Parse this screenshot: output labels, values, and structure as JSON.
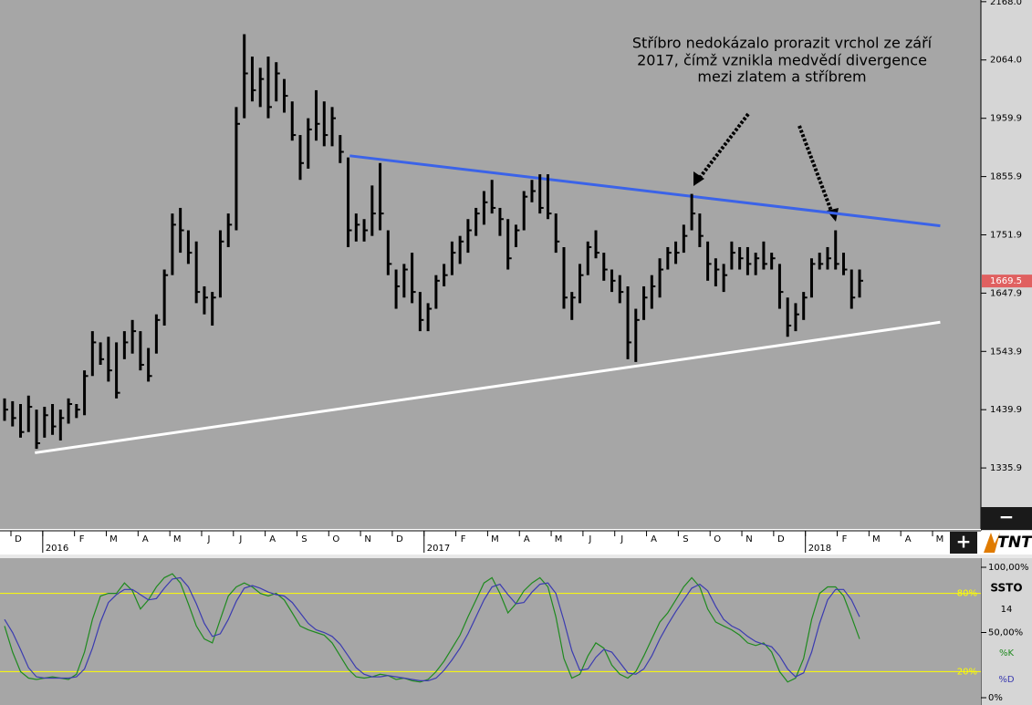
{
  "chart_data": [
    {
      "type": "ohlc",
      "annotation": [
        "Stříbro nedokázalo prorazit vrchol ze září",
        "2017, čímž vznikla medvědí divergence",
        "mezi zlatem a stříbrem"
      ],
      "color": "#000000",
      "high": [
        1460,
        1455,
        1450,
        1465,
        1440,
        1445,
        1450,
        1440,
        1460,
        1450,
        1510,
        1580,
        1560,
        1570,
        1560,
        1580,
        1600,
        1580,
        1550,
        1610,
        1690,
        1790,
        1800,
        1760,
        1740,
        1660,
        1650,
        1760,
        1790,
        1980,
        2110,
        2070,
        2050,
        2070,
        2060,
        2030,
        1990,
        1930,
        1960,
        2010,
        1990,
        1980,
        1930,
        1890,
        1790,
        1780,
        1840,
        1880,
        1760,
        1690,
        1700,
        1720,
        1650,
        1630,
        1680,
        1700,
        1740,
        1750,
        1780,
        1800,
        1830,
        1850,
        1800,
        1780,
        1770,
        1830,
        1850,
        1860,
        1860,
        1790,
        1730,
        1650,
        1700,
        1740,
        1760,
        1720,
        1690,
        1680,
        1660,
        1620,
        1660,
        1680,
        1710,
        1730,
        1740,
        1770,
        1825,
        1790,
        1740,
        1710,
        1700,
        1740,
        1730,
        1730,
        1720,
        1740,
        1720,
        1700,
        1640,
        1630,
        1650,
        1710,
        1720,
        1730,
        1760,
        1720,
        1690,
        1690
      ],
      "low": [
        1420,
        1410,
        1390,
        1400,
        1370,
        1390,
        1395,
        1385,
        1415,
        1425,
        1430,
        1500,
        1520,
        1490,
        1460,
        1530,
        1540,
        1510,
        1490,
        1540,
        1590,
        1680,
        1720,
        1700,
        1630,
        1610,
        1590,
        1640,
        1730,
        1760,
        1960,
        1990,
        1980,
        1960,
        1990,
        1970,
        1920,
        1850,
        1870,
        1920,
        1910,
        1910,
        1880,
        1730,
        1740,
        1740,
        1750,
        1760,
        1680,
        1620,
        1640,
        1630,
        1580,
        1580,
        1620,
        1660,
        1680,
        1700,
        1720,
        1750,
        1770,
        1790,
        1750,
        1690,
        1730,
        1760,
        1810,
        1790,
        1780,
        1720,
        1620,
        1600,
        1630,
        1680,
        1710,
        1670,
        1650,
        1630,
        1530,
        1525,
        1600,
        1620,
        1640,
        1690,
        1700,
        1720,
        1760,
        1730,
        1670,
        1660,
        1650,
        1690,
        1690,
        1680,
        1680,
        1690,
        1690,
        1620,
        1570,
        1580,
        1600,
        1640,
        1690,
        1690,
        1690,
        1680,
        1620,
        1640
      ],
      "close": [
        1440,
        1425,
        1400,
        1445,
        1380,
        1430,
        1410,
        1425,
        1450,
        1440,
        1500,
        1560,
        1530,
        1510,
        1470,
        1560,
        1580,
        1520,
        1500,
        1600,
        1680,
        1770,
        1760,
        1720,
        1650,
        1640,
        1640,
        1740,
        1770,
        1950,
        2040,
        2010,
        2030,
        1980,
        2040,
        2000,
        1930,
        1880,
        1940,
        1950,
        1930,
        1960,
        1900,
        1760,
        1770,
        1760,
        1790,
        1790,
        1700,
        1660,
        1690,
        1650,
        1600,
        1620,
        1670,
        1680,
        1720,
        1740,
        1760,
        1790,
        1810,
        1800,
        1780,
        1710,
        1760,
        1820,
        1830,
        1800,
        1790,
        1740,
        1640,
        1640,
        1680,
        1730,
        1720,
        1690,
        1670,
        1650,
        1560,
        1600,
        1640,
        1660,
        1690,
        1720,
        1720,
        1750,
        1790,
        1750,
        1700,
        1690,
        1680,
        1720,
        1710,
        1700,
        1710,
        1700,
        1710,
        1650,
        1590,
        1610,
        1640,
        1700,
        1700,
        1710,
        1700,
        1690,
        1640,
        1670
      ],
      "ylim": [
        1227,
        2171
      ],
      "yticks": [
        {
          "value": 2168,
          "label": "2168.0"
        },
        {
          "value": 2064,
          "label": "2064.0"
        },
        1959.9,
        1855.9,
        1751.9,
        1647.9,
        1543.9,
        1439.9,
        1335.9
      ],
      "last_price": 1669.5,
      "trendlines": [
        {
          "color": "#3b63e8",
          "x": [
            43.2,
            117.1
          ],
          "values": [
            1893,
            1768
          ]
        },
        {
          "color": "#ffffff",
          "x": [
            3.8,
            117.1
          ],
          "values": [
            1363,
            1596
          ]
        }
      ],
      "x_axis": {
        "months": [
          "D",
          null,
          "F",
          "M",
          "A",
          "M",
          "J",
          "J",
          "A",
          "S",
          "O",
          "N",
          "D",
          null,
          "F",
          "M",
          "A",
          "M",
          "J",
          "J",
          "A",
          "S",
          "O",
          "N",
          "D",
          null,
          "F",
          "M",
          "A",
          "M"
        ],
        "years": [
          "2016",
          "2017",
          "2018"
        ]
      }
    },
    {
      "type": "line",
      "title": "SSTO",
      "period": 14,
      "series": [
        {
          "name": "%K",
          "color": "#1f8a1f",
          "values": [
            55,
            35,
            20,
            15,
            14,
            15,
            16,
            15,
            14,
            18,
            35,
            60,
            78,
            80,
            80,
            88,
            82,
            68,
            75,
            85,
            92,
            95,
            88,
            72,
            55,
            45,
            42,
            60,
            78,
            85,
            88,
            85,
            80,
            78,
            80,
            75,
            65,
            55,
            52,
            50,
            48,
            42,
            32,
            22,
            16,
            15,
            16,
            18,
            17,
            14,
            15,
            13,
            12,
            14,
            20,
            28,
            38,
            48,
            62,
            75,
            88,
            92,
            80,
            65,
            72,
            82,
            88,
            92,
            85,
            62,
            30,
            15,
            18,
            32,
            42,
            38,
            25,
            18,
            15,
            20,
            32,
            45,
            58,
            65,
            75,
            85,
            92,
            85,
            68,
            58,
            55,
            52,
            48,
            42,
            40,
            42,
            35,
            20,
            12,
            15,
            30,
            60,
            80,
            85,
            85,
            78,
            62,
            45
          ]
        },
        {
          "name": "%D",
          "color": "#3b3bb0",
          "values": [
            60,
            50,
            37,
            23,
            16,
            15,
            15,
            15,
            15,
            16,
            22,
            38,
            58,
            73,
            79,
            83,
            83,
            79,
            75,
            76,
            84,
            91,
            92,
            85,
            72,
            57,
            47,
            49,
            60,
            74,
            84,
            86,
            84,
            81,
            79,
            78,
            73,
            65,
            57,
            52,
            50,
            47,
            41,
            32,
            23,
            18,
            16,
            16,
            17,
            16,
            15,
            14,
            13,
            13,
            15,
            21,
            29,
            38,
            49,
            62,
            75,
            85,
            87,
            79,
            72,
            73,
            81,
            87,
            88,
            80,
            59,
            36,
            21,
            22,
            31,
            37,
            35,
            27,
            19,
            18,
            22,
            32,
            45,
            56,
            66,
            75,
            84,
            87,
            82,
            70,
            60,
            55,
            52,
            47,
            43,
            41,
            39,
            32,
            22,
            16,
            19,
            35,
            57,
            75,
            83,
            83,
            75,
            62
          ]
        }
      ],
      "ylim": [
        0,
        100
      ],
      "yticks": [
        {
          "value": 100,
          "label": "100,00%"
        },
        {
          "value": 50,
          "label": "50,00%"
        },
        {
          "value": 0,
          "label": "0%"
        }
      ],
      "levels": [
        {
          "value": 80,
          "label": "80%"
        },
        {
          "value": 20,
          "label": "20%"
        }
      ],
      "level_color": "#ffff00"
    }
  ],
  "ui": {
    "zoom_out": "−",
    "zoom_in": "+",
    "logo": "TNT"
  }
}
